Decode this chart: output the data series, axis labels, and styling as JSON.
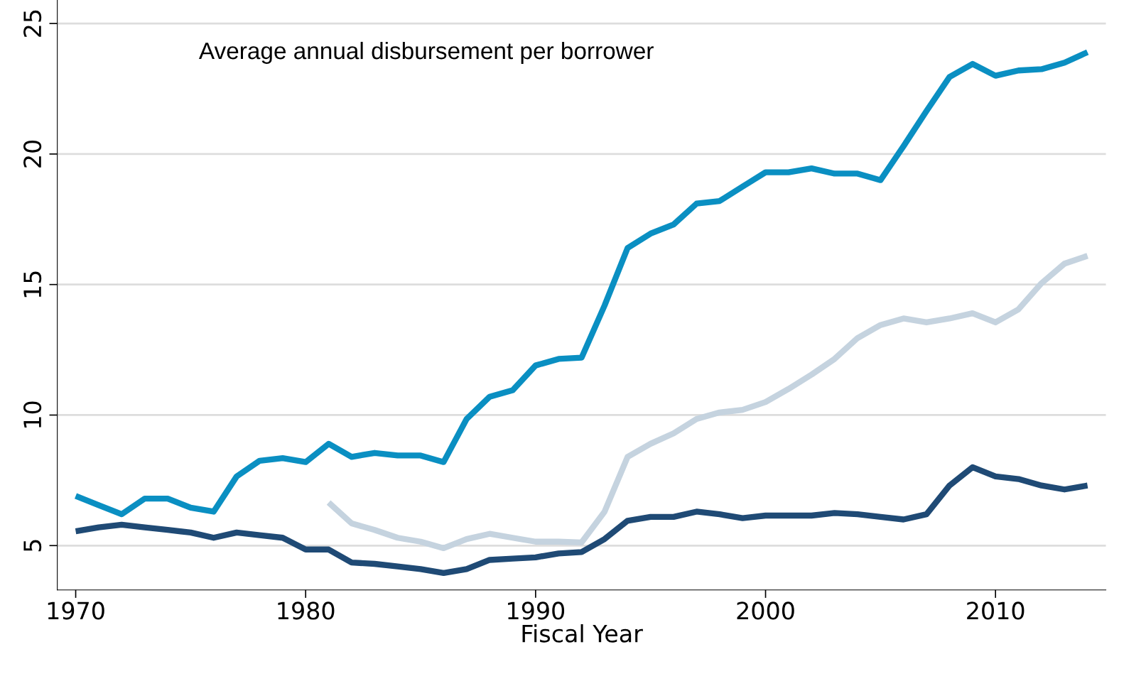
{
  "chart_data": {
    "type": "line",
    "xlabel": "Fiscal Year",
    "annotations": [
      "Average annual disbursement per borrower"
    ],
    "xlim": [
      1969.2,
      2014.8
    ],
    "xticks": [
      1970,
      1980,
      1990,
      2000,
      2010
    ],
    "ylim": [
      3.3,
      25.9
    ],
    "yticks": [
      5,
      10,
      15,
      20,
      25
    ],
    "grid": "y",
    "legend": false,
    "marker": "none",
    "line_style": "solid",
    "series": [
      {
        "color": "#0a8fc2",
        "x": [
          1970,
          1971,
          1972,
          1973,
          1974,
          1975,
          1976,
          1977,
          1978,
          1979,
          1980,
          1981,
          1982,
          1983,
          1984,
          1985,
          1986,
          1987,
          1988,
          1989,
          1990,
          1991,
          1992,
          1993,
          1994,
          1995,
          1996,
          1997,
          1998,
          1999,
          2000,
          2001,
          2002,
          2003,
          2004,
          2005,
          2006,
          2007,
          2008,
          2009,
          2010,
          2011,
          2012,
          2013,
          2014
        ],
        "values": [
          6.9,
          6.55,
          6.2,
          6.8,
          6.8,
          6.45,
          6.3,
          7.65,
          8.25,
          8.35,
          8.2,
          8.9,
          8.4,
          8.55,
          8.45,
          8.45,
          8.2,
          9.85,
          10.7,
          10.95,
          11.9,
          12.15,
          12.2,
          14.2,
          16.4,
          16.95,
          17.3,
          18.1,
          18.2,
          18.75,
          19.3,
          19.3,
          19.45,
          19.25,
          19.25,
          19.0,
          20.3,
          21.65,
          22.95,
          23.45,
          23.0,
          23.2,
          23.25,
          23.5,
          23.9
        ]
      },
      {
        "color": "#c5d3df",
        "x": [
          1981,
          1982,
          1983,
          1984,
          1985,
          1986,
          1987,
          1988,
          1989,
          1990,
          1991,
          1992,
          1993,
          1994,
          1995,
          1996,
          1997,
          1998,
          1999,
          2000,
          2001,
          2002,
          2003,
          2004,
          2005,
          2006,
          2007,
          2008,
          2009,
          2010,
          2011,
          2012,
          2013,
          2014
        ],
        "values": [
          6.65,
          5.85,
          5.6,
          5.3,
          5.15,
          4.9,
          5.25,
          5.45,
          5.3,
          5.15,
          5.15,
          5.12,
          6.3,
          8.4,
          8.9,
          9.3,
          9.85,
          10.1,
          10.2,
          10.5,
          11.0,
          11.55,
          12.15,
          12.95,
          13.45,
          13.7,
          13.55,
          13.7,
          13.9,
          13.55,
          14.05,
          15.05,
          15.8,
          16.1
        ]
      },
      {
        "color": "#1f4a75",
        "x": [
          1970,
          1971,
          1972,
          1973,
          1974,
          1975,
          1976,
          1977,
          1978,
          1979,
          1980,
          1981,
          1982,
          1983,
          1984,
          1985,
          1986,
          1987,
          1988,
          1989,
          1990,
          1991,
          1992,
          1993,
          1994,
          1995,
          1996,
          1997,
          1998,
          1999,
          2000,
          2001,
          2002,
          2003,
          2004,
          2005,
          2006,
          2007,
          2008,
          2009,
          2010,
          2011,
          2012,
          2013,
          2014
        ],
        "values": [
          5.55,
          5.7,
          5.8,
          5.7,
          5.6,
          5.5,
          5.3,
          5.5,
          5.4,
          5.3,
          4.85,
          4.85,
          4.35,
          4.3,
          4.2,
          4.1,
          3.95,
          4.1,
          4.45,
          4.5,
          4.55,
          4.7,
          4.75,
          5.25,
          5.95,
          6.1,
          6.1,
          6.3,
          6.2,
          6.05,
          6.15,
          6.15,
          6.15,
          6.25,
          6.2,
          6.1,
          6.0,
          6.2,
          7.3,
          8.0,
          7.65,
          7.55,
          7.3,
          7.15,
          7.3
        ]
      }
    ]
  }
}
